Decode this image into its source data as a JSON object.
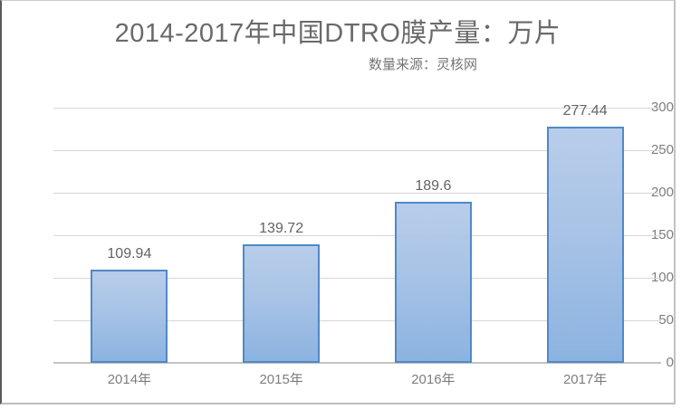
{
  "chart_data": {
    "type": "bar",
    "title": "2014-2017年中国DTRO膜产量：万片",
    "subtitle": "数量来源：灵核网",
    "categories": [
      "2014年",
      "2015年",
      "2016年",
      "2017年"
    ],
    "values": [
      109.94,
      139.72,
      189.6,
      277.44
    ],
    "data_labels": [
      "109.94",
      "139.72",
      "189.6",
      "277.44"
    ],
    "xlabel": "",
    "ylabel": "",
    "ylim": [
      0,
      300
    ],
    "yticks": [
      0,
      50,
      100,
      150,
      200,
      250,
      300
    ],
    "grid": true,
    "legend_position": "none",
    "colors": {
      "bar_fill_top": "#b8cdea",
      "bar_fill_bottom": "#8bb3e0",
      "bar_border": "#5089c6",
      "gridline": "#d6d6d6",
      "axis_line": "#c3c3c3",
      "tick_text": "#7d7d7d",
      "title_text": "#6a6a6a",
      "subtitle_text": "#757575",
      "value_label_text": "#636363"
    }
  }
}
